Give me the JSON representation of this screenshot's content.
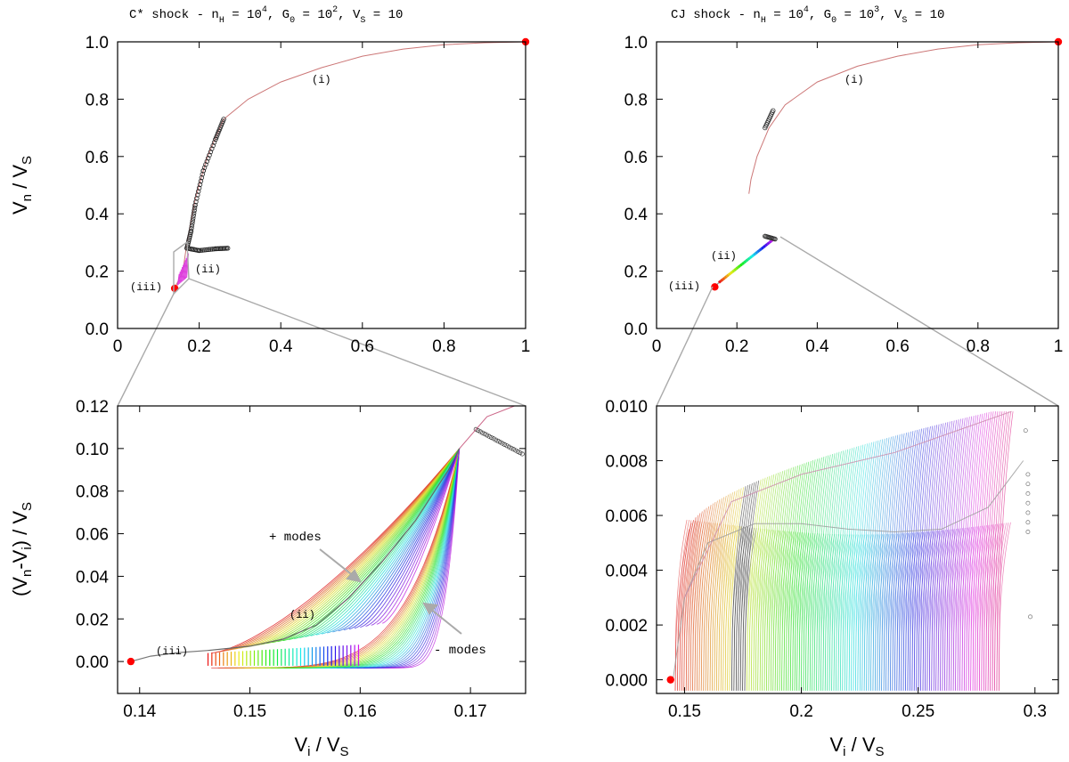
{
  "chart_data": [
    {
      "type": "line",
      "panel": "top-left",
      "title": "C* shock - n_H = 10^4, G_0 = 10^2, V_S = 10",
      "title_parts": {
        "lead": "C* shock - n",
        "s1": "H",
        "m1": " = 10",
        "p1": "4",
        "m2": ", G",
        "s2": "0",
        "m3": " = 10",
        "p2": "2",
        "m4": ", V",
        "s3": "S",
        "m5": " = 10"
      },
      "xlabel": "",
      "ylabel": "V_n / V_S",
      "ylabel_parts": {
        "a": "V",
        "a_sub": "n",
        "b": " / V",
        "b_sub": "S"
      },
      "xlim": [
        0,
        1
      ],
      "ylim": [
        0,
        1
      ],
      "xticks": [
        "0",
        "0.2",
        "0.4",
        "0.6",
        "0.8",
        "1"
      ],
      "yticks": [
        "0.0",
        "0.2",
        "0.4",
        "0.6",
        "0.8",
        "1.0"
      ],
      "series": [
        {
          "values": [
            [
              1.0,
              1.0
            ],
            [
              0.9,
              0.997
            ],
            [
              0.8,
              0.99
            ],
            [
              0.7,
              0.975
            ],
            [
              0.6,
              0.95
            ],
            [
              0.5,
              0.91
            ],
            [
              0.4,
              0.86
            ],
            [
              0.32,
              0.8
            ],
            [
              0.26,
              0.73
            ],
            [
              0.22,
              0.6
            ],
            [
              0.19,
              0.45
            ],
            [
              0.17,
              0.3
            ],
            [
              0.16,
              0.2
            ],
            [
              0.14,
              0.14
            ]
          ]
        },
        {
          "values": [
            [
              0.26,
              0.73
            ],
            [
              0.24,
              0.66
            ],
            [
              0.21,
              0.55
            ],
            [
              0.19,
              0.43
            ],
            [
              0.18,
              0.34
            ],
            [
              0.17,
              0.28
            ],
            [
              0.2,
              0.272
            ],
            [
              0.24,
              0.278
            ],
            [
              0.27,
              0.28
            ]
          ]
        }
      ],
      "points": [
        [
          1.0,
          1.0
        ],
        [
          0.14,
          0.14
        ]
      ],
      "annotations": [
        "(i)",
        "(ii)",
        "(iii)"
      ]
    },
    {
      "type": "line",
      "panel": "top-right",
      "title": "CJ shock - n_H = 10^4, G_0 = 10^3, V_S = 10",
      "title_parts": {
        "lead": "CJ shock - n",
        "s1": "H",
        "m1": " = 10",
        "p1": "4",
        "m2": ", G",
        "s2": "0",
        "m3": " = 10",
        "p2": "3",
        "m4": ", V",
        "s3": "S",
        "m5": " = 10"
      },
      "xlabel": "",
      "ylabel": "",
      "xlim": [
        0,
        1
      ],
      "ylim": [
        0,
        1
      ],
      "xticks": [
        "0",
        "0.2",
        "0.4",
        "0.6",
        "0.8",
        "1"
      ],
      "yticks": [
        "0.0",
        "0.2",
        "0.4",
        "0.6",
        "0.8",
        "1.0"
      ],
      "series": [
        {
          "values": [
            [
              1.0,
              1.0
            ],
            [
              0.9,
              0.997
            ],
            [
              0.8,
              0.99
            ],
            [
              0.7,
              0.975
            ],
            [
              0.6,
              0.95
            ],
            [
              0.5,
              0.915
            ],
            [
              0.4,
              0.86
            ],
            [
              0.32,
              0.78
            ],
            [
              0.28,
              0.7
            ],
            [
              0.25,
              0.6
            ],
            [
              0.235,
              0.52
            ],
            [
              0.23,
              0.47
            ]
          ]
        },
        {
          "values": [
            [
              0.145,
              0.145
            ],
            [
              0.2,
              0.22
            ],
            [
              0.25,
              0.28
            ],
            [
              0.28,
              0.315
            ],
            [
              0.3,
              0.31
            ]
          ]
        }
      ],
      "points": [
        [
          1.0,
          1.0
        ],
        [
          0.145,
          0.145
        ]
      ],
      "annotations": [
        "(i)",
        "(ii)",
        "(iii)"
      ]
    },
    {
      "type": "line",
      "panel": "bottom-left",
      "xlabel": "V_i / V_S",
      "ylabel": "(V_n-V_i) / V_S",
      "xlabel_parts": {
        "a": "V",
        "a_sub": "i",
        "b": " / V",
        "b_sub": "S"
      },
      "ylabel_parts": {
        "a": "(V",
        "a_sub": "n",
        "b": "-V",
        "b_sub": "i",
        "c": ") / V",
        "c_sub": "S"
      },
      "xlim": [
        0.138,
        0.175
      ],
      "ylim": [
        -0.015,
        0.12
      ],
      "xticks": [
        "0.14",
        "0.15",
        "0.16",
        "0.17"
      ],
      "yticks": [
        "0.00",
        "0.02",
        "0.04",
        "0.06",
        "0.08",
        "0.10",
        "0.12"
      ],
      "series": [
        {
          "values": [
            [
              0.1392,
              0.0
            ],
            [
              0.141,
              0.002
            ],
            [
              0.144,
              0.004
            ],
            [
              0.146,
              0.005
            ],
            [
              0.15,
              0.007
            ],
            [
              0.155,
              0.014
            ],
            [
              0.16,
              0.037
            ],
            [
              0.165,
              0.068
            ],
            [
              0.169,
              0.1
            ],
            [
              0.1705,
              0.112
            ],
            [
              0.173,
              0.118
            ]
          ]
        },
        {
          "values": [
            [
              0.146,
              0.005
            ],
            [
              0.15,
              0.007
            ],
            [
              0.155,
              0.014
            ],
            [
              0.158,
              0.022
            ],
            [
              0.162,
              0.045
            ],
            [
              0.166,
              0.075
            ],
            [
              0.169,
              0.1
            ]
          ]
        }
      ],
      "points": [
        [
          0.1392,
          0.0
        ]
      ],
      "annotations": [
        "+ modes",
        "(ii)",
        "(iii)",
        "- modes"
      ]
    },
    {
      "type": "line",
      "panel": "bottom-right",
      "xlabel": "V_i / V_S",
      "ylabel": "",
      "xlabel_parts": {
        "a": "V",
        "a_sub": "i",
        "b": " / V",
        "b_sub": "S"
      },
      "xlim": [
        0.138,
        0.31
      ],
      "ylim": [
        -0.0005,
        0.01
      ],
      "xticks": [
        "0.15",
        "0.2",
        "0.25",
        "0.3"
      ],
      "yticks": [
        "0.000",
        "0.002",
        "0.004",
        "0.006",
        "0.008",
        "0.010"
      ],
      "series": [
        {
          "values": [
            [
              0.145,
              0.0
            ],
            [
              0.15,
              0.003
            ],
            [
              0.16,
              0.005
            ],
            [
              0.18,
              0.0057
            ],
            [
              0.2,
              0.0057
            ],
            [
              0.22,
              0.0055
            ],
            [
              0.24,
              0.0054
            ],
            [
              0.26,
              0.0055
            ],
            [
              0.28,
              0.0063
            ],
            [
              0.295,
              0.008
            ]
          ]
        },
        {
          "values": [
            [
              0.15,
              0.003
            ],
            [
              0.17,
              0.0065
            ],
            [
              0.2,
              0.0075
            ],
            [
              0.24,
              0.0083
            ],
            [
              0.27,
              0.0092
            ],
            [
              0.29,
              0.0098
            ]
          ]
        }
      ],
      "points": [
        [
          0.144,
          0.0
        ]
      ],
      "annotations": []
    }
  ]
}
